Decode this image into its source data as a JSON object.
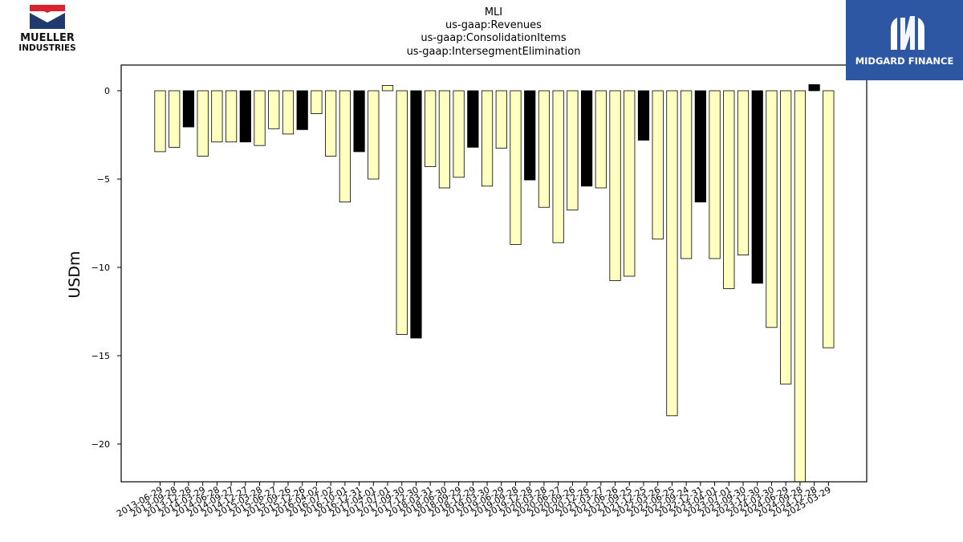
{
  "logos": {
    "left_line1": "MUELLER",
    "left_line2": "INDUSTRIES",
    "right_text": "MIDGARD FINANCE"
  },
  "colors": {
    "bar_normal": "#ffffbf",
    "bar_highlight": "#000000",
    "bar_edge": "#000000",
    "logo_red": "#d9232e",
    "logo_navy": "#1f3a6e",
    "midgard_blue": "#2d56a3"
  },
  "chart_data": {
    "type": "bar",
    "title": [
      "MLI",
      "us-gaap:Revenues",
      "us-gaap:ConsolidationItems",
      "us-gaap:IntersegmentElimination"
    ],
    "xlabel": "",
    "ylabel": "USDm",
    "ylim": [
      -22.2,
      1.45
    ],
    "yticks": [
      0,
      -5,
      -10,
      -15,
      -20
    ],
    "grid": false,
    "legend": "none",
    "categories": [
      "2013-06-29",
      "2013-09-28",
      "2013-12-28",
      "2014-03-29",
      "2014-06-28",
      "2014-09-27",
      "2014-12-27",
      "2015-03-28",
      "2015-06-27",
      "2015-09-26",
      "2015-12-26",
      "2016-04-02",
      "2016-07-02",
      "2016-10-01",
      "2016-12-31",
      "2017-04-01",
      "2017-07-01",
      "2017-09-30",
      "2017-12-30",
      "2018-03-31",
      "2018-06-30",
      "2018-09-29",
      "2018-12-29",
      "2019-03-30",
      "2019-06-29",
      "2019-09-28",
      "2019-12-28",
      "2020-03-28",
      "2020-06-27",
      "2020-09-26",
      "2020-12-26",
      "2021-03-27",
      "2021-06-26",
      "2021-09-25",
      "2021-12-25",
      "2022-03-26",
      "2022-06-25",
      "2022-09-24",
      "2022-12-31",
      "2023-04-01",
      "2023-07-01",
      "2023-09-30",
      "2023-12-30",
      "2024-03-30",
      "2024-06-29",
      "2024-09-28",
      "2024-12-28",
      "2025-03-29"
    ],
    "values": [
      -3.45,
      -3.2,
      -2.05,
      -3.7,
      -2.9,
      -2.9,
      -2.9,
      -3.1,
      -2.15,
      -2.45,
      -2.2,
      -1.3,
      -3.7,
      -6.3,
      -3.45,
      -5.0,
      0.3,
      -13.8,
      -14.0,
      -4.3,
      -5.5,
      -4.9,
      -3.2,
      -5.4,
      -3.25,
      -8.7,
      -5.05,
      -6.6,
      -8.6,
      -6.75,
      -5.4,
      -5.5,
      -10.75,
      -10.5,
      -2.8,
      -8.4,
      -18.4,
      -9.5,
      -6.3,
      -9.5,
      -11.2,
      -9.3,
      -10.9,
      -13.4,
      -16.6,
      -22.2,
      0.35,
      -14.55
    ],
    "highlight": [
      false,
      false,
      true,
      false,
      false,
      false,
      true,
      false,
      false,
      false,
      true,
      false,
      false,
      false,
      true,
      false,
      false,
      false,
      true,
      false,
      false,
      false,
      true,
      false,
      false,
      false,
      true,
      false,
      false,
      false,
      true,
      false,
      false,
      false,
      true,
      false,
      false,
      false,
      true,
      false,
      false,
      false,
      true,
      false,
      false,
      false,
      true,
      false
    ]
  }
}
